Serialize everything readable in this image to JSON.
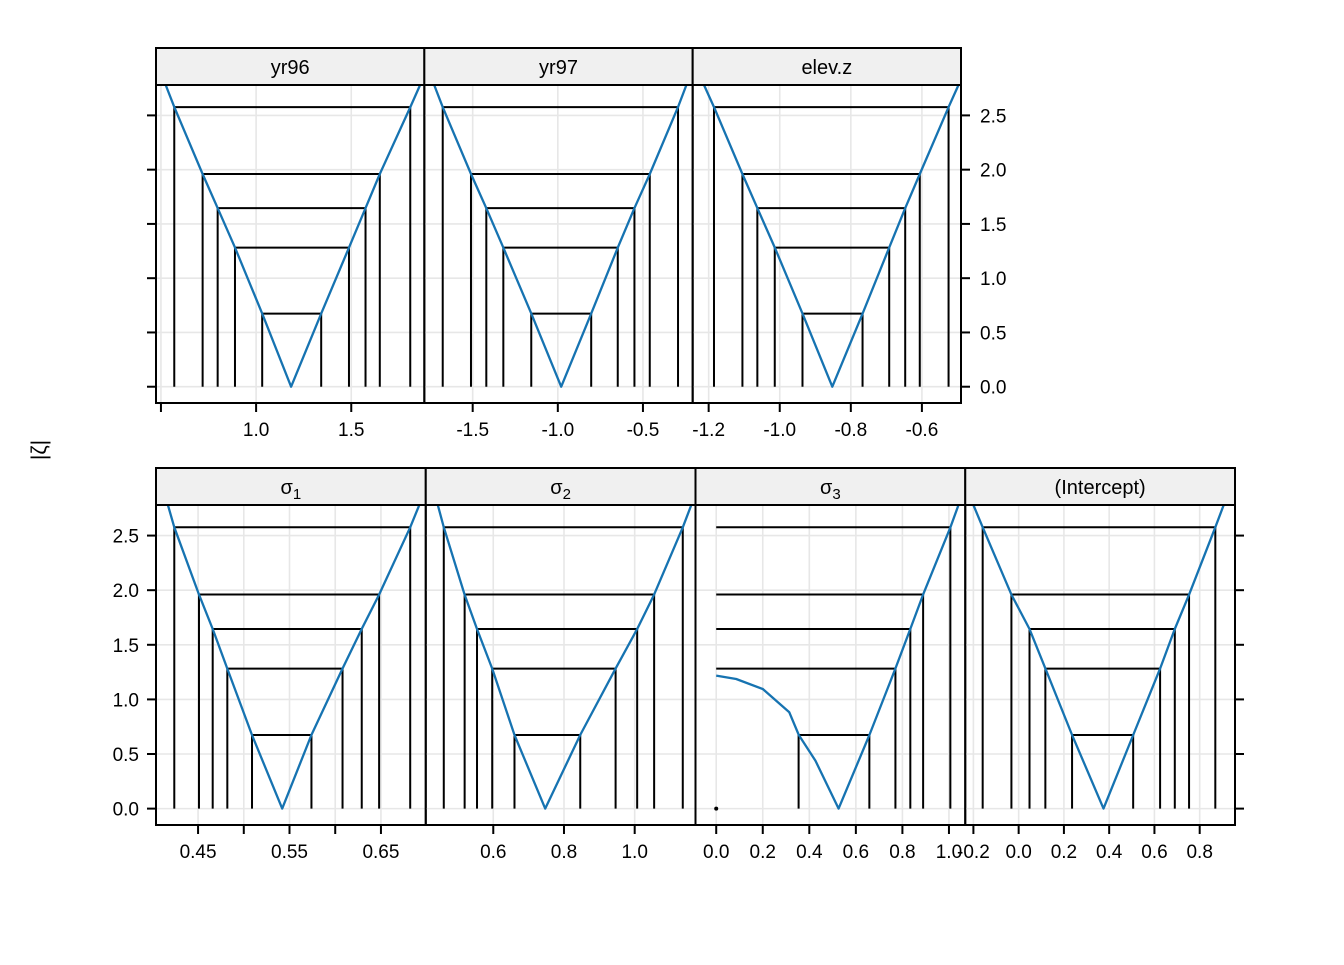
{
  "figure": {
    "ylab": "|ζ|",
    "colors": {
      "curve": "#1673B1",
      "level_line": "#000000",
      "grid": "#E7E7E7",
      "strip_bg": "#F0F0F0",
      "border": "#000000",
      "text": "#000000",
      "background": "#FFFFFF"
    }
  },
  "chart_data": {
    "type": "line",
    "title": "",
    "xlabel": "",
    "ylabel": "|ζ|",
    "ylim": [
      -0.15,
      2.78
    ],
    "y_ticks": [
      {
        "v": 0.0,
        "label": "0.0"
      },
      {
        "v": 0.5,
        "label": "0.5"
      },
      {
        "v": 1.0,
        "label": "1.0"
      },
      {
        "v": 1.5,
        "label": "1.5"
      },
      {
        "v": 2.0,
        "label": "2.0"
      },
      {
        "v": 2.5,
        "label": "2.5"
      }
    ],
    "zeta_levels": [
      0.674,
      1.282,
      1.645,
      1.96,
      2.576
    ],
    "grid": true,
    "legend": "none",
    "rows": [
      {
        "label_side": "right",
        "panels": [
          {
            "name": "yr96",
            "strip": {
              "base": "yr96",
              "sub": ""
            },
            "xlim": [
              0.474,
              1.884
            ],
            "x_ticks": [
              {
                "v": 0.5,
                "label": ""
              },
              {
                "v": 1.0,
                "label": "1.0"
              },
              {
                "v": 1.5,
                "label": "1.5"
              }
            ],
            "mle": 1.184,
            "top_left": 0.525,
            "top_right": 1.862,
            "intervals": [
              [
                1.032,
                1.342
              ],
              [
                0.889,
                1.488
              ],
              [
                0.798,
                1.575
              ],
              [
                0.719,
                1.65
              ],
              [
                0.57,
                1.81
              ]
            ]
          },
          {
            "name": "yr97",
            "strip": {
              "base": "yr97",
              "sub": ""
            },
            "xlim": [
              -1.784,
              -0.208
            ],
            "x_ticks": [
              {
                "v": -1.5,
                "label": "-1.5"
              },
              {
                "v": -1.0,
                "label": "-1.0"
              },
              {
                "v": -0.5,
                "label": "-0.5"
              }
            ],
            "mle": -0.98,
            "top_left": -1.726,
            "top_right": -0.245,
            "intervals": [
              [
                -1.156,
                -0.804
              ],
              [
                -1.32,
                -0.648
              ],
              [
                -1.42,
                -0.55
              ],
              [
                -1.51,
                -0.46
              ],
              [
                -1.676,
                -0.294
              ]
            ]
          },
          {
            "name": "elev.z",
            "strip": {
              "base": "elev.z",
              "sub": ""
            },
            "xlim": [
              -1.245,
              -0.49
            ],
            "x_ticks": [
              {
                "v": -1.2,
                "label": "-1.2"
              },
              {
                "v": -1.0,
                "label": "-1.0"
              },
              {
                "v": -0.8,
                "label": "-0.8"
              },
              {
                "v": -0.6,
                "label": "-0.6"
              }
            ],
            "mle": -0.852,
            "top_left": -1.213,
            "top_right": -0.497,
            "intervals": [
              [
                -0.936,
                -0.767
              ],
              [
                -1.014,
                -0.692
              ],
              [
                -1.063,
                -0.647
              ],
              [
                -1.105,
                -0.606
              ],
              [
                -1.185,
                -0.525
              ]
            ]
          }
        ]
      },
      {
        "label_side": "left",
        "panels": [
          {
            "name": "sigma1",
            "strip": {
              "base": "σ",
              "sub": "1"
            },
            "xlim": [
              0.404,
              0.699
            ],
            "x_ticks": [
              {
                "v": 0.45,
                "label": "0.45"
              },
              {
                "v": 0.5,
                "label": ""
              },
              {
                "v": 0.55,
                "label": "0.55"
              },
              {
                "v": 0.6,
                "label": ""
              },
              {
                "v": 0.65,
                "label": "0.65"
              }
            ],
            "mle": 0.542,
            "top_left": 0.417,
            "top_right": 0.692,
            "intervals": [
              [
                0.509,
                0.574
              ],
              [
                0.482,
                0.608
              ],
              [
                0.466,
                0.629
              ],
              [
                0.451,
                0.648
              ],
              [
                0.424,
                0.682
              ]
            ]
          },
          {
            "name": "sigma2",
            "strip": {
              "base": "σ",
              "sub": "2"
            },
            "xlim": [
              0.409,
              1.172
            ],
            "x_ticks": [
              {
                "v": 0.6,
                "label": "0.6"
              },
              {
                "v": 0.8,
                "label": "0.8"
              },
              {
                "v": 1.0,
                "label": "1.0"
              }
            ],
            "mle": 0.747,
            "top_left": 0.443,
            "top_right": 1.16,
            "intervals": [
              [
                0.66,
                0.846
              ],
              [
                0.597,
                0.946
              ],
              [
                0.554,
                1.007
              ],
              [
                0.519,
                1.055
              ],
              [
                0.46,
                1.136
              ]
            ]
          },
          {
            "name": "sigma3",
            "strip": {
              "base": "σ",
              "sub": "3"
            },
            "xlim": [
              -0.089,
              1.07
            ],
            "x_ticks": [
              {
                "v": 0.0,
                "label": "0.0"
              },
              {
                "v": 0.2,
                "label": "0.2"
              },
              {
                "v": 0.4,
                "label": "0.4"
              },
              {
                "v": 0.6,
                "label": "0.6"
              },
              {
                "v": 0.8,
                "label": "0.8"
              },
              {
                "v": 1.0,
                "label": "1.0"
              }
            ],
            "mle": 0.526,
            "top_right": 1.041,
            "intervals": [
              [
                0.354,
                0.658
              ],
              [
                0.0,
                0.77
              ],
              [
                0.0,
                0.834
              ],
              [
                0.0,
                0.889
              ],
              [
                0.0,
                1.006
              ]
            ],
            "lo_drops": [
              true,
              false,
              false,
              false,
              false
            ],
            "left_branch": [
              [
                0.0,
                1.218
              ],
              [
                0.086,
                1.187
              ],
              [
                0.2,
                1.095
              ],
              [
                0.314,
                0.882
              ],
              [
                0.355,
                0.674
              ],
              [
                0.426,
                0.44
              ]
            ],
            "lower_limit_marker": 0.0
          },
          {
            "name": "(Intercept)",
            "strip": {
              "base": "(Intercept)",
              "sub": ""
            },
            "xlim": [
              -0.236,
              0.956
            ],
            "x_ticks": [
              {
                "v": -0.2,
                "label": "-0.2"
              },
              {
                "v": 0.0,
                "label": "0.0"
              },
              {
                "v": 0.2,
                "label": "0.2"
              },
              {
                "v": 0.4,
                "label": "0.4"
              },
              {
                "v": 0.6,
                "label": "0.6"
              },
              {
                "v": 0.8,
                "label": "0.8"
              }
            ],
            "mle": 0.375,
            "top_left": -0.2,
            "top_right": 0.906,
            "intervals": [
              [
                0.236,
                0.506
              ],
              [
                0.118,
                0.625
              ],
              [
                0.048,
                0.69
              ],
              [
                -0.032,
                0.753
              ],
              [
                -0.159,
                0.869
              ]
            ]
          }
        ]
      }
    ]
  }
}
